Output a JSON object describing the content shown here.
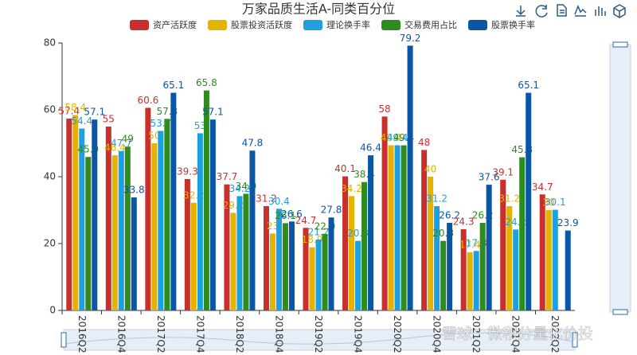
{
  "chart_data": {
    "type": "bar",
    "title": "万家品质生活A-同类百分位",
    "watermark": "雪球：微积分量化价投",
    "categories": [
      "2016Q2",
      "2016Q4",
      "2017Q2",
      "2017Q4",
      "2018Q2",
      "2018Q4",
      "2019Q2",
      "2019Q4",
      "2020Q2",
      "2020Q4",
      "2021Q2",
      "2021Q4",
      "2022Q2"
    ],
    "series": [
      {
        "name": "资产活跃度",
        "color": "#c9302c",
        "values": [
          57.4,
          55,
          60.6,
          39.3,
          37.7,
          31.2,
          24.7,
          40.1,
          58,
          48,
          24.3,
          39.1,
          34.7
        ]
      },
      {
        "name": "股票投资活跃度",
        "color": "#e5b200",
        "values": [
          58.4,
          46.4,
          50,
          32.2,
          29.2,
          23,
          18.9,
          34.2,
          49.4,
          40,
          17.4,
          31.2,
          30
        ]
      },
      {
        "name": "理论换手率",
        "color": "#1e9fe0",
        "values": [
          54.4,
          47.7,
          53.7,
          53,
          34.2,
          30.4,
          21.2,
          20.8,
          49.4,
          31.2,
          17.8,
          24.2,
          30.1
        ]
      },
      {
        "name": "交易费用占比",
        "color": "#2e8b1e",
        "values": [
          45.9,
          49,
          57.3,
          65.8,
          34.9,
          26.1,
          22.9,
          38.4,
          49.4,
          20.8,
          26.2,
          45.8,
          null
        ]
      },
      {
        "name": "股票换手率",
        "color": "#0a56a6",
        "values": [
          57.1,
          33.8,
          65.1,
          57.1,
          47.8,
          26.6,
          27.8,
          46.4,
          79.2,
          26.2,
          37.6,
          65.1,
          23.9
        ]
      }
    ],
    "ylim": [
      0,
      80
    ],
    "yticks": [
      0,
      20,
      40,
      60,
      80
    ]
  }
}
